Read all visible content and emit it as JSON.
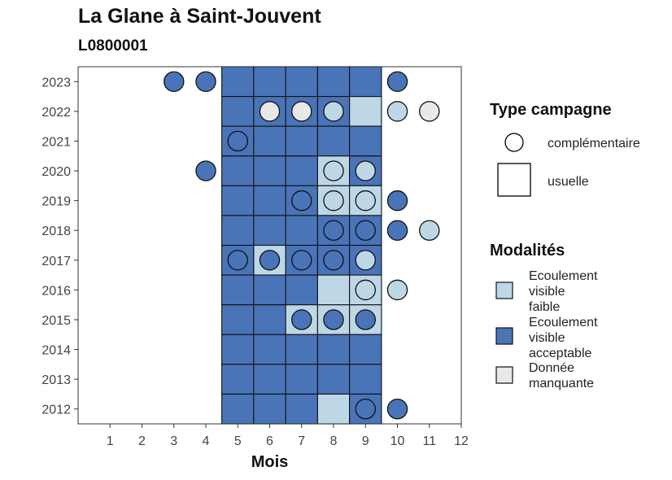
{
  "title": "La Glane à Saint-Jouvent",
  "subtitle": "L0800001",
  "colors": {
    "faible": "#bdd7e7",
    "acceptable": "#4a74b8",
    "manquante": "#e8e8e8"
  },
  "legend_type": {
    "title": "Type campagne",
    "items": [
      {
        "shape": "circle",
        "label": "complémentaire"
      },
      {
        "shape": "square",
        "label": "usuelle"
      }
    ]
  },
  "legend_modalites": {
    "title": "Modalités",
    "items": [
      {
        "key": "faible",
        "lines": [
          "Ecoulement",
          "visible",
          "faible"
        ]
      },
      {
        "key": "acceptable",
        "lines": [
          "Ecoulement",
          "visible",
          "acceptable"
        ]
      },
      {
        "key": "manquante",
        "lines": [
          "Donnée",
          "manquante"
        ]
      }
    ]
  },
  "chart_data": {
    "type": "heatmap",
    "title": "La Glane à Saint-Jouvent",
    "subtitle": "L0800001",
    "xlabel": "Mois",
    "ylabel": "",
    "x_ticks": [
      1,
      2,
      3,
      4,
      5,
      6,
      7,
      8,
      9,
      10,
      11,
      12
    ],
    "y_ticks": [
      2012,
      2013,
      2014,
      2015,
      2016,
      2017,
      2018,
      2019,
      2020,
      2021,
      2022,
      2023
    ],
    "xlim": [
      0.5,
      12.5
    ],
    "ylim": [
      2011.5,
      2023.5
    ],
    "grid": false,
    "legend_position": "right",
    "points": [
      {
        "year": 2023,
        "month": 3,
        "type": "complémentaire",
        "modalite": "acceptable"
      },
      {
        "year": 2023,
        "month": 4,
        "type": "complémentaire",
        "modalite": "acceptable"
      },
      {
        "year": 2023,
        "month": 5,
        "type": "usuelle",
        "modalite": "acceptable"
      },
      {
        "year": 2023,
        "month": 6,
        "type": "usuelle",
        "modalite": "acceptable"
      },
      {
        "year": 2023,
        "month": 7,
        "type": "usuelle",
        "modalite": "acceptable"
      },
      {
        "year": 2023,
        "month": 8,
        "type": "usuelle",
        "modalite": "acceptable"
      },
      {
        "year": 2023,
        "month": 9,
        "type": "usuelle",
        "modalite": "acceptable"
      },
      {
        "year": 2023,
        "month": 10,
        "type": "complémentaire",
        "modalite": "acceptable"
      },
      {
        "year": 2022,
        "month": 5,
        "type": "usuelle",
        "modalite": "acceptable"
      },
      {
        "year": 2022,
        "month": 6,
        "type": "usuelle",
        "modalite": "acceptable"
      },
      {
        "year": 2022,
        "month": 6,
        "type": "complémentaire",
        "modalite": "manquante"
      },
      {
        "year": 2022,
        "month": 7,
        "type": "usuelle",
        "modalite": "acceptable"
      },
      {
        "year": 2022,
        "month": 7,
        "type": "complémentaire",
        "modalite": "manquante"
      },
      {
        "year": 2022,
        "month": 8,
        "type": "usuelle",
        "modalite": "acceptable"
      },
      {
        "year": 2022,
        "month": 8,
        "type": "complémentaire",
        "modalite": "faible"
      },
      {
        "year": 2022,
        "month": 9,
        "type": "usuelle",
        "modalite": "faible"
      },
      {
        "year": 2022,
        "month": 10,
        "type": "complémentaire",
        "modalite": "faible"
      },
      {
        "year": 2022,
        "month": 11,
        "type": "complémentaire",
        "modalite": "manquante"
      },
      {
        "year": 2021,
        "month": 5,
        "type": "usuelle",
        "modalite": "acceptable"
      },
      {
        "year": 2021,
        "month": 5,
        "type": "complémentaire",
        "modalite": "acceptable"
      },
      {
        "year": 2021,
        "month": 6,
        "type": "usuelle",
        "modalite": "acceptable"
      },
      {
        "year": 2021,
        "month": 7,
        "type": "usuelle",
        "modalite": "acceptable"
      },
      {
        "year": 2021,
        "month": 8,
        "type": "usuelle",
        "modalite": "acceptable"
      },
      {
        "year": 2021,
        "month": 9,
        "type": "usuelle",
        "modalite": "acceptable"
      },
      {
        "year": 2020,
        "month": 4,
        "type": "complémentaire",
        "modalite": "acceptable"
      },
      {
        "year": 2020,
        "month": 5,
        "type": "usuelle",
        "modalite": "acceptable"
      },
      {
        "year": 2020,
        "month": 6,
        "type": "usuelle",
        "modalite": "acceptable"
      },
      {
        "year": 2020,
        "month": 7,
        "type": "usuelle",
        "modalite": "acceptable"
      },
      {
        "year": 2020,
        "month": 8,
        "type": "usuelle",
        "modalite": "faible"
      },
      {
        "year": 2020,
        "month": 8,
        "type": "complémentaire",
        "modalite": "faible"
      },
      {
        "year": 2020,
        "month": 9,
        "type": "usuelle",
        "modalite": "acceptable"
      },
      {
        "year": 2020,
        "month": 9,
        "type": "complémentaire",
        "modalite": "faible"
      },
      {
        "year": 2019,
        "month": 5,
        "type": "usuelle",
        "modalite": "acceptable"
      },
      {
        "year": 2019,
        "month": 6,
        "type": "usuelle",
        "modalite": "acceptable"
      },
      {
        "year": 2019,
        "month": 7,
        "type": "usuelle",
        "modalite": "acceptable"
      },
      {
        "year": 2019,
        "month": 7,
        "type": "complémentaire",
        "modalite": "acceptable"
      },
      {
        "year": 2019,
        "month": 8,
        "type": "usuelle",
        "modalite": "faible"
      },
      {
        "year": 2019,
        "month": 8,
        "type": "complémentaire",
        "modalite": "faible"
      },
      {
        "year": 2019,
        "month": 9,
        "type": "usuelle",
        "modalite": "faible"
      },
      {
        "year": 2019,
        "month": 9,
        "type": "complémentaire",
        "modalite": "faible"
      },
      {
        "year": 2019,
        "month": 10,
        "type": "complémentaire",
        "modalite": "acceptable"
      },
      {
        "year": 2018,
        "month": 5,
        "type": "usuelle",
        "modalite": "acceptable"
      },
      {
        "year": 2018,
        "month": 6,
        "type": "usuelle",
        "modalite": "acceptable"
      },
      {
        "year": 2018,
        "month": 7,
        "type": "usuelle",
        "modalite": "acceptable"
      },
      {
        "year": 2018,
        "month": 8,
        "type": "usuelle",
        "modalite": "acceptable"
      },
      {
        "year": 2018,
        "month": 8,
        "type": "complémentaire",
        "modalite": "acceptable"
      },
      {
        "year": 2018,
        "month": 9,
        "type": "usuelle",
        "modalite": "acceptable"
      },
      {
        "year": 2018,
        "month": 9,
        "type": "complémentaire",
        "modalite": "acceptable"
      },
      {
        "year": 2018,
        "month": 10,
        "type": "complémentaire",
        "modalite": "acceptable"
      },
      {
        "year": 2018,
        "month": 11,
        "type": "complémentaire",
        "modalite": "faible"
      },
      {
        "year": 2017,
        "month": 5,
        "type": "usuelle",
        "modalite": "acceptable"
      },
      {
        "year": 2017,
        "month": 5,
        "type": "complémentaire",
        "modalite": "acceptable"
      },
      {
        "year": 2017,
        "month": 6,
        "type": "usuelle",
        "modalite": "faible"
      },
      {
        "year": 2017,
        "month": 6,
        "type": "complémentaire",
        "modalite": "acceptable"
      },
      {
        "year": 2017,
        "month": 7,
        "type": "usuelle",
        "modalite": "acceptable"
      },
      {
        "year": 2017,
        "month": 7,
        "type": "complémentaire",
        "modalite": "acceptable"
      },
      {
        "year": 2017,
        "month": 8,
        "type": "usuelle",
        "modalite": "acceptable"
      },
      {
        "year": 2017,
        "month": 8,
        "type": "complémentaire",
        "modalite": "acceptable"
      },
      {
        "year": 2017,
        "month": 9,
        "type": "usuelle",
        "modalite": "acceptable"
      },
      {
        "year": 2017,
        "month": 9,
        "type": "complémentaire",
        "modalite": "faible"
      },
      {
        "year": 2016,
        "month": 5,
        "type": "usuelle",
        "modalite": "acceptable"
      },
      {
        "year": 2016,
        "month": 6,
        "type": "usuelle",
        "modalite": "acceptable"
      },
      {
        "year": 2016,
        "month": 7,
        "type": "usuelle",
        "modalite": "acceptable"
      },
      {
        "year": 2016,
        "month": 8,
        "type": "usuelle",
        "modalite": "faible"
      },
      {
        "year": 2016,
        "month": 9,
        "type": "usuelle",
        "modalite": "faible"
      },
      {
        "year": 2016,
        "month": 9,
        "type": "complémentaire",
        "modalite": "faible"
      },
      {
        "year": 2016,
        "month": 10,
        "type": "complémentaire",
        "modalite": "faible"
      },
      {
        "year": 2015,
        "month": 5,
        "type": "usuelle",
        "modalite": "acceptable"
      },
      {
        "year": 2015,
        "month": 6,
        "type": "usuelle",
        "modalite": "acceptable"
      },
      {
        "year": 2015,
        "month": 7,
        "type": "usuelle",
        "modalite": "faible"
      },
      {
        "year": 2015,
        "month": 7,
        "type": "complémentaire",
        "modalite": "acceptable"
      },
      {
        "year": 2015,
        "month": 8,
        "type": "usuelle",
        "modalite": "faible"
      },
      {
        "year": 2015,
        "month": 8,
        "type": "complémentaire",
        "modalite": "acceptable"
      },
      {
        "year": 2015,
        "month": 9,
        "type": "usuelle",
        "modalite": "faible"
      },
      {
        "year": 2015,
        "month": 9,
        "type": "complémentaire",
        "modalite": "acceptable"
      },
      {
        "year": 2014,
        "month": 5,
        "type": "usuelle",
        "modalite": "acceptable"
      },
      {
        "year": 2014,
        "month": 6,
        "type": "usuelle",
        "modalite": "acceptable"
      },
      {
        "year": 2014,
        "month": 7,
        "type": "usuelle",
        "modalite": "acceptable"
      },
      {
        "year": 2014,
        "month": 8,
        "type": "usuelle",
        "modalite": "acceptable"
      },
      {
        "year": 2014,
        "month": 9,
        "type": "usuelle",
        "modalite": "acceptable"
      },
      {
        "year": 2013,
        "month": 5,
        "type": "usuelle",
        "modalite": "acceptable"
      },
      {
        "year": 2013,
        "month": 6,
        "type": "usuelle",
        "modalite": "acceptable"
      },
      {
        "year": 2013,
        "month": 7,
        "type": "usuelle",
        "modalite": "acceptable"
      },
      {
        "year": 2013,
        "month": 8,
        "type": "usuelle",
        "modalite": "acceptable"
      },
      {
        "year": 2013,
        "month": 9,
        "type": "usuelle",
        "modalite": "acceptable"
      },
      {
        "year": 2012,
        "month": 5,
        "type": "usuelle",
        "modalite": "acceptable"
      },
      {
        "year": 2012,
        "month": 6,
        "type": "usuelle",
        "modalite": "acceptable"
      },
      {
        "year": 2012,
        "month": 7,
        "type": "usuelle",
        "modalite": "acceptable"
      },
      {
        "year": 2012,
        "month": 8,
        "type": "usuelle",
        "modalite": "faible"
      },
      {
        "year": 2012,
        "month": 9,
        "type": "usuelle",
        "modalite": "acceptable"
      },
      {
        "year": 2012,
        "month": 9,
        "type": "complémentaire",
        "modalite": "acceptable"
      },
      {
        "year": 2012,
        "month": 10,
        "type": "complémentaire",
        "modalite": "acceptable"
      }
    ]
  }
}
